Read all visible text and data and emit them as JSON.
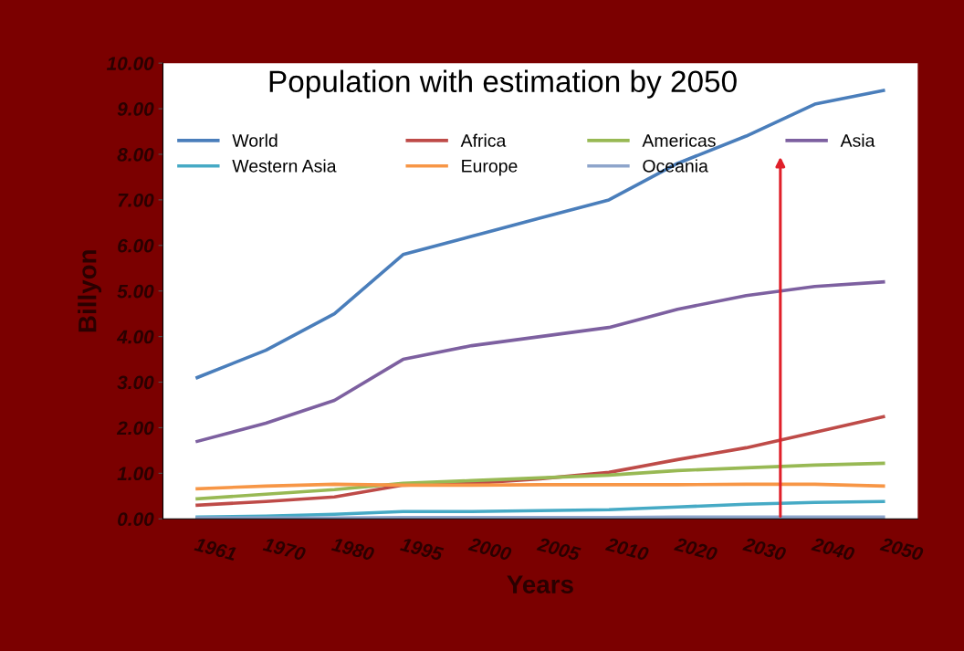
{
  "chart_data": {
    "type": "line",
    "title": "Population with estimation by 2050",
    "xlabel": "Years",
    "ylabel": "Billyon",
    "categories": [
      "1961",
      "1970",
      "1980",
      "1995",
      "2000",
      "2005",
      "2010",
      "2020",
      "2030",
      "2040",
      "2050"
    ],
    "ylim": [
      0,
      10
    ],
    "yticks": [
      {
        "value": 0,
        "label": "0.00"
      },
      {
        "value": 1,
        "label": "1.00"
      },
      {
        "value": 2,
        "label": "2.00"
      },
      {
        "value": 3,
        "label": "3.00"
      },
      {
        "value": 4,
        "label": "4.00"
      },
      {
        "value": 5,
        "label": "5.00"
      },
      {
        "value": 6,
        "label": "6.00"
      },
      {
        "value": 7,
        "label": "7.00"
      },
      {
        "value": 8,
        "label": "8.00"
      },
      {
        "value": 9,
        "label": "9.00"
      },
      {
        "value": 10,
        "label": "10.00"
      }
    ],
    "grid": false,
    "legend": "top left",
    "marker": "none",
    "line_style": "solid",
    "series": [
      {
        "name": "World",
        "color": "#4a7ebb",
        "values": [
          3.1,
          3.7,
          4.5,
          5.8,
          6.2,
          6.6,
          7.0,
          7.8,
          8.4,
          9.1,
          9.4
        ]
      },
      {
        "name": "Africa",
        "color": "#be4b48",
        "values": [
          0.3,
          0.38,
          0.48,
          0.74,
          0.78,
          0.88,
          1.02,
          1.3,
          1.56,
          1.9,
          2.24
        ]
      },
      {
        "name": "Americas",
        "color": "#98b954",
        "values": [
          0.44,
          0.54,
          0.64,
          0.78,
          0.84,
          0.9,
          0.96,
          1.06,
          1.12,
          1.18,
          1.22
        ]
      },
      {
        "name": "Asia",
        "color": "#7d60a0",
        "values": [
          1.7,
          2.1,
          2.6,
          3.5,
          3.8,
          4.0,
          4.2,
          4.6,
          4.9,
          5.1,
          5.2
        ]
      },
      {
        "name": "Western Asia",
        "color": "#46aac5",
        "values": [
          0.04,
          0.06,
          0.1,
          0.16,
          0.16,
          0.18,
          0.2,
          0.26,
          0.32,
          0.36,
          0.38
        ]
      },
      {
        "name": "Europe",
        "color": "#f79646",
        "values": [
          0.66,
          0.72,
          0.76,
          0.74,
          0.74,
          0.75,
          0.75,
          0.75,
          0.76,
          0.76,
          0.72
        ]
      },
      {
        "name": "Oceania",
        "color": "#8ea5cb",
        "values": [
          0.02,
          0.02,
          0.02,
          0.03,
          0.03,
          0.03,
          0.03,
          0.04,
          0.04,
          0.04,
          0.04
        ]
      }
    ]
  }
}
